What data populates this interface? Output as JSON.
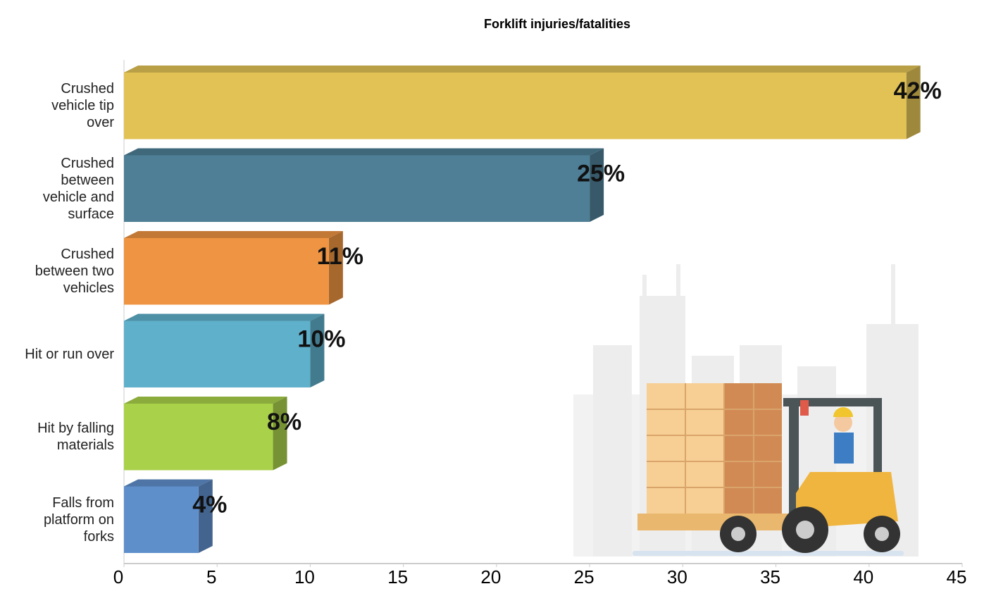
{
  "chart_data": {
    "type": "bar",
    "orientation": "horizontal",
    "title": "Forklift injuries/fatalities",
    "categories": [
      "Crushed\nvehicle tip\nover",
      "Crushed\nbetween\nvehicle and\nsurface",
      "Crushed\nbetween two\nvehicles",
      "Hit or run over",
      "Hit by falling\nmaterials",
      "Falls from\nplatform on\nforks"
    ],
    "values": [
      42,
      25,
      11,
      10,
      8,
      4
    ],
    "value_labels": [
      "42%",
      "25%",
      "11%",
      "10%",
      "8%",
      "4%"
    ],
    "colors": [
      "#e2c255",
      "#4e7f96",
      "#ee9442",
      "#5fb0cb",
      "#a9d14a",
      "#5f8fcb"
    ],
    "xlim": [
      0,
      45
    ],
    "xticks": [
      0,
      5,
      10,
      15,
      20,
      25,
      30,
      35,
      40,
      45
    ]
  }
}
